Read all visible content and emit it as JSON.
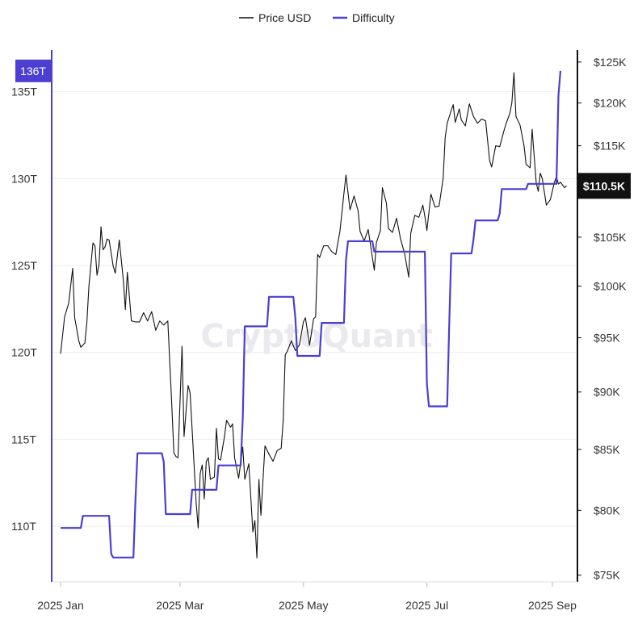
{
  "chart_data": {
    "type": "line",
    "watermark": "CryptoQuant",
    "legend": [
      {
        "name": "Price USD",
        "color": "#111111"
      },
      {
        "name": "Difficulty",
        "color": "#4a3fd1"
      }
    ],
    "x_ticks": [
      "2025 Jan",
      "2025 Mar",
      "2025 May",
      "2025 Jul",
      "2025 Sep"
    ],
    "x_tick_dates": [
      "2025-01-01",
      "2025-03-01",
      "2025-05-01",
      "2025-07-01",
      "2025-09-01"
    ],
    "x_range": [
      "2025-01-01",
      "2025-09-08"
    ],
    "left_axis": {
      "ticks": [
        "110T",
        "115T",
        "120T",
        "125T",
        "130T",
        "135T"
      ],
      "range": [
        106800000000000,
        137400000000000
      ],
      "current_label": "136T",
      "color": "#4a3fd1"
    },
    "right_axis": {
      "ticks": [
        "$75K",
        "$80K",
        "$85K",
        "$90K",
        "$95K",
        "$100K",
        "$105K",
        "$110K",
        "$115K",
        "$120K",
        "$125K"
      ],
      "tick_values": [
        75000,
        80000,
        85000,
        90000,
        95000,
        100000,
        105000,
        110000,
        115000,
        120000,
        125000
      ],
      "log_scale": true,
      "range": [
        74500,
        126500
      ],
      "current_label": "$110.5K",
      "color": "#111111"
    },
    "series": [
      {
        "name": "Price USD",
        "axis": "right",
        "points": [
          [
            "2025-01-01",
            93500
          ],
          [
            "2025-01-03",
            97000
          ],
          [
            "2025-01-05",
            98300
          ],
          [
            "2025-01-07",
            101800
          ],
          [
            "2025-01-08",
            96900
          ],
          [
            "2025-01-10",
            94700
          ],
          [
            "2025-01-11",
            94100
          ],
          [
            "2025-01-13",
            94500
          ],
          [
            "2025-01-14",
            96500
          ],
          [
            "2025-01-15",
            100000
          ],
          [
            "2025-01-17",
            104400
          ],
          [
            "2025-01-18",
            104100
          ],
          [
            "2025-01-19",
            101100
          ],
          [
            "2025-01-20",
            102200
          ],
          [
            "2025-01-21",
            106100
          ],
          [
            "2025-01-22",
            103700
          ],
          [
            "2025-01-23",
            104000
          ],
          [
            "2025-01-24",
            104800
          ],
          [
            "2025-01-25",
            104700
          ],
          [
            "2025-01-27",
            102000
          ],
          [
            "2025-01-28",
            101300
          ],
          [
            "2025-01-30",
            104700
          ],
          [
            "2025-02-01",
            100600
          ],
          [
            "2025-02-02",
            97700
          ],
          [
            "2025-02-03",
            101400
          ],
          [
            "2025-02-05",
            96600
          ],
          [
            "2025-02-07",
            96500
          ],
          [
            "2025-02-09",
            96500
          ],
          [
            "2025-02-11",
            97400
          ],
          [
            "2025-02-13",
            96600
          ],
          [
            "2025-02-15",
            97500
          ],
          [
            "2025-02-17",
            95700
          ],
          [
            "2025-02-19",
            96600
          ],
          [
            "2025-02-21",
            96200
          ],
          [
            "2025-02-23",
            96600
          ],
          [
            "2025-02-25",
            88700
          ],
          [
            "2025-02-26",
            84700
          ],
          [
            "2025-02-27",
            84400
          ],
          [
            "2025-02-28",
            84300
          ],
          [
            "2025-03-02",
            94200
          ],
          [
            "2025-03-03",
            86100
          ],
          [
            "2025-03-05",
            90600
          ],
          [
            "2025-03-06",
            89900
          ],
          [
            "2025-03-07",
            86700
          ],
          [
            "2025-03-09",
            80600
          ],
          [
            "2025-03-10",
            78600
          ],
          [
            "2025-03-11",
            83000
          ],
          [
            "2025-03-12",
            83700
          ],
          [
            "2025-03-13",
            80900
          ],
          [
            "2025-03-14",
            84000
          ],
          [
            "2025-03-15",
            84300
          ],
          [
            "2025-03-16",
            82500
          ],
          [
            "2025-03-18",
            82700
          ],
          [
            "2025-03-19",
            86800
          ],
          [
            "2025-03-20",
            84200
          ],
          [
            "2025-03-21",
            84100
          ],
          [
            "2025-03-23",
            86100
          ],
          [
            "2025-03-24",
            87500
          ],
          [
            "2025-03-26",
            86900
          ],
          [
            "2025-03-27",
            87200
          ],
          [
            "2025-03-28",
            84300
          ],
          [
            "2025-03-30",
            82600
          ],
          [
            "2025-04-01",
            85200
          ],
          [
            "2025-04-02",
            82500
          ],
          [
            "2025-04-04",
            83800
          ],
          [
            "2025-04-06",
            78300
          ],
          [
            "2025-04-07",
            79200
          ],
          [
            "2025-04-08",
            76300
          ],
          [
            "2025-04-09",
            82500
          ],
          [
            "2025-04-10",
            79600
          ],
          [
            "2025-04-12",
            85300
          ],
          [
            "2025-04-14",
            84600
          ],
          [
            "2025-04-16",
            84000
          ],
          [
            "2025-04-18",
            84900
          ],
          [
            "2025-04-20",
            85100
          ],
          [
            "2025-04-21",
            87500
          ],
          [
            "2025-04-22",
            93400
          ],
          [
            "2025-04-23",
            93700
          ],
          [
            "2025-04-25",
            94700
          ],
          [
            "2025-04-27",
            93800
          ],
          [
            "2025-04-29",
            94300
          ],
          [
            "2025-05-01",
            96500
          ],
          [
            "2025-05-02",
            96900
          ],
          [
            "2025-05-04",
            94300
          ],
          [
            "2025-05-06",
            96800
          ],
          [
            "2025-05-07",
            97000
          ],
          [
            "2025-05-08",
            103200
          ],
          [
            "2025-05-09",
            102900
          ],
          [
            "2025-05-11",
            104100
          ],
          [
            "2025-05-13",
            104100
          ],
          [
            "2025-05-15",
            103500
          ],
          [
            "2025-05-17",
            103200
          ],
          [
            "2025-05-19",
            105600
          ],
          [
            "2025-05-21",
            109700
          ],
          [
            "2025-05-22",
            111700
          ],
          [
            "2025-05-24",
            107900
          ],
          [
            "2025-05-26",
            109400
          ],
          [
            "2025-05-28",
            107800
          ],
          [
            "2025-05-29",
            105600
          ],
          [
            "2025-05-31",
            104600
          ],
          [
            "2025-06-02",
            105800
          ],
          [
            "2025-06-05",
            101600
          ],
          [
            "2025-06-06",
            104400
          ],
          [
            "2025-06-08",
            105700
          ],
          [
            "2025-06-09",
            110300
          ],
          [
            "2025-06-11",
            108600
          ],
          [
            "2025-06-12",
            105900
          ],
          [
            "2025-06-14",
            105500
          ],
          [
            "2025-06-16",
            107000
          ],
          [
            "2025-06-18",
            104800
          ],
          [
            "2025-06-20",
            103300
          ],
          [
            "2025-06-22",
            100900
          ],
          [
            "2025-06-23",
            105400
          ],
          [
            "2025-06-25",
            107300
          ],
          [
            "2025-06-27",
            107100
          ],
          [
            "2025-06-29",
            108400
          ],
          [
            "2025-06-30",
            107200
          ],
          [
            "2025-07-01",
            105700
          ],
          [
            "2025-07-03",
            109600
          ],
          [
            "2025-07-05",
            108200
          ],
          [
            "2025-07-07",
            108300
          ],
          [
            "2025-07-09",
            111300
          ],
          [
            "2025-07-10",
            115900
          ],
          [
            "2025-07-11",
            117600
          ],
          [
            "2025-07-13",
            119100
          ],
          [
            "2025-07-14",
            119800
          ],
          [
            "2025-07-15",
            117700
          ],
          [
            "2025-07-17",
            119300
          ],
          [
            "2025-07-18",
            118000
          ],
          [
            "2025-07-20",
            117300
          ],
          [
            "2025-07-22",
            119900
          ],
          [
            "2025-07-24",
            118400
          ],
          [
            "2025-07-26",
            117600
          ],
          [
            "2025-07-28",
            118100
          ],
          [
            "2025-07-30",
            117900
          ],
          [
            "2025-08-01",
            113300
          ],
          [
            "2025-08-02",
            112600
          ],
          [
            "2025-08-04",
            115000
          ],
          [
            "2025-08-06",
            114900
          ],
          [
            "2025-08-08",
            116700
          ],
          [
            "2025-08-09",
            117500
          ],
          [
            "2025-08-11",
            118800
          ],
          [
            "2025-08-12",
            120100
          ],
          [
            "2025-08-13",
            123700
          ],
          [
            "2025-08-14",
            118400
          ],
          [
            "2025-08-16",
            117400
          ],
          [
            "2025-08-18",
            115000
          ],
          [
            "2025-08-19",
            112900
          ],
          [
            "2025-08-21",
            112500
          ],
          [
            "2025-08-22",
            116900
          ],
          [
            "2025-08-24",
            110800
          ],
          [
            "2025-08-25",
            109900
          ],
          [
            "2025-08-26",
            111900
          ],
          [
            "2025-08-27",
            111300
          ],
          [
            "2025-08-29",
            108400
          ],
          [
            "2025-08-31",
            109000
          ],
          [
            "2025-09-02",
            110900
          ],
          [
            "2025-09-03",
            111500
          ],
          [
            "2025-09-04",
            110700
          ],
          [
            "2025-09-05",
            110900
          ],
          [
            "2025-09-06",
            110600
          ],
          [
            "2025-09-07",
            110300
          ],
          [
            "2025-09-08",
            110500
          ]
        ]
      },
      {
        "name": "Difficulty",
        "axis": "left",
        "points": [
          [
            "2025-01-01",
            109900000000000
          ],
          [
            "2025-01-11",
            109900000000000
          ],
          [
            "2025-01-12",
            110600000000000
          ],
          [
            "2025-01-25",
            110600000000000
          ],
          [
            "2025-01-26",
            108400000000000
          ],
          [
            "2025-01-27",
            108200000000000
          ],
          [
            "2025-02-06",
            108200000000000
          ],
          [
            "2025-02-07",
            111500000000000
          ],
          [
            "2025-02-08",
            114200000000000
          ],
          [
            "2025-02-20",
            114200000000000
          ],
          [
            "2025-02-21",
            113700000000000
          ],
          [
            "2025-02-22",
            110700000000000
          ],
          [
            "2025-03-06",
            110700000000000
          ],
          [
            "2025-03-07",
            112100000000000
          ],
          [
            "2025-03-19",
            112100000000000
          ],
          [
            "2025-03-20",
            113500000000000
          ],
          [
            "2025-03-31",
            113500000000000
          ],
          [
            "2025-04-01",
            116200000000000
          ],
          [
            "2025-04-02",
            121500000000000
          ],
          [
            "2025-04-13",
            121500000000000
          ],
          [
            "2025-04-14",
            123200000000000
          ],
          [
            "2025-04-26",
            123200000000000
          ],
          [
            "2025-04-27",
            122000000000000
          ],
          [
            "2025-04-28",
            119800000000000
          ],
          [
            "2025-05-09",
            119800000000000
          ],
          [
            "2025-05-10",
            121700000000000
          ],
          [
            "2025-05-21",
            121700000000000
          ],
          [
            "2025-05-22",
            125300000000000
          ],
          [
            "2025-05-23",
            126400000000000
          ],
          [
            "2025-06-04",
            126400000000000
          ],
          [
            "2025-06-05",
            125800000000000
          ],
          [
            "2025-06-19",
            125800000000000
          ],
          [
            "2025-06-30",
            125800000000000
          ],
          [
            "2025-07-01",
            118200000000000
          ],
          [
            "2025-07-02",
            116900000000000
          ],
          [
            "2025-07-11",
            116900000000000
          ],
          [
            "2025-07-12",
            121500000000000
          ],
          [
            "2025-07-13",
            125700000000000
          ],
          [
            "2025-07-23",
            125700000000000
          ],
          [
            "2025-07-24",
            126500000000000
          ],
          [
            "2025-07-25",
            127600000000000
          ],
          [
            "2025-08-05",
            127600000000000
          ],
          [
            "2025-08-06",
            128000000000000
          ],
          [
            "2025-08-07",
            129400000000000
          ],
          [
            "2025-08-19",
            129400000000000
          ],
          [
            "2025-08-20",
            129700000000000
          ],
          [
            "2025-08-31",
            129700000000000
          ],
          [
            "2025-09-01",
            129700000000000
          ],
          [
            "2025-09-02",
            129700000000000
          ],
          [
            "2025-09-03",
            129700000000000
          ],
          [
            "2025-09-04",
            134800000000000
          ],
          [
            "2025-09-05",
            136200000000000
          ]
        ]
      }
    ]
  }
}
